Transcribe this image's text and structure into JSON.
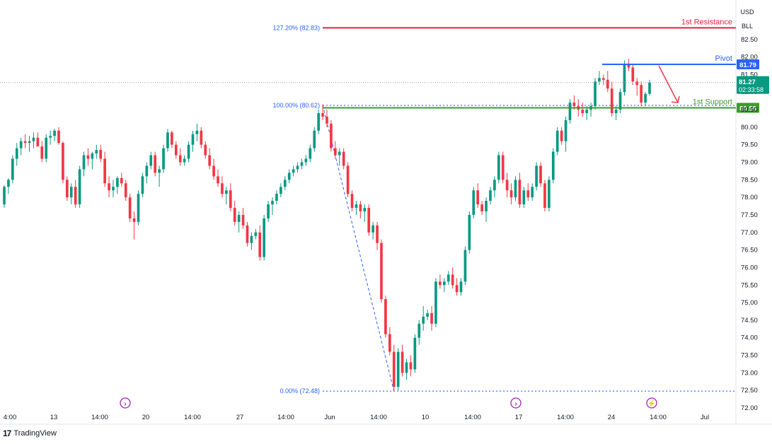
{
  "chart_data": {
    "type": "candlestick",
    "currency": "USD",
    "unit": "BLL",
    "ylim": [
      72.0,
      83.2
    ],
    "y_ticks": [
      "72.00",
      "72.50",
      "73.00",
      "73.50",
      "74.00",
      "74.50",
      "75.00",
      "75.50",
      "76.00",
      "76.50",
      "77.00",
      "77.50",
      "78.00",
      "78.50",
      "79.00",
      "79.50",
      "80.00",
      "80.50",
      "81.00",
      "81.50",
      "82.00",
      "82.50"
    ],
    "x_ticks": [
      "4:00",
      "13",
      "14:00",
      "20",
      "14:00",
      "27",
      "14:00",
      "Jun",
      "14:00",
      "10",
      "14:00",
      "17",
      "14:00",
      "24",
      "14:00",
      "Jul"
    ],
    "price_level": {
      "value": 81.27,
      "label": "81.27",
      "countdown": "02:33:58",
      "color": "#089981"
    },
    "levels": [
      {
        "name": "1st Resistance",
        "value": 82.83,
        "color": "#e91e45"
      },
      {
        "name": "Pivot",
        "value": 81.79,
        "label": "81.79",
        "color": "#2962ff"
      },
      {
        "name": "1st Support",
        "value": 80.55,
        "label": "80.55",
        "color": "#3d9a2b"
      }
    ],
    "fib_levels": [
      {
        "label": "127.20% (82.83)",
        "value": 82.83
      },
      {
        "label": "100.00% (80.62)",
        "value": 80.62
      },
      {
        "label": "0.00% (72.48)",
        "value": 72.48
      }
    ],
    "fib_swing": {
      "from_value": 80.62,
      "to_value": 72.48
    },
    "up_color": "#089981",
    "down_color": "#f23645",
    "candles": [
      [
        77.8,
        78.35,
        77.7,
        78.3
      ],
      [
        78.3,
        78.55,
        78.1,
        78.5
      ],
      [
        78.5,
        79.2,
        78.4,
        79.1
      ],
      [
        79.1,
        79.55,
        78.9,
        79.4
      ],
      [
        79.4,
        79.7,
        79.2,
        79.6
      ],
      [
        79.6,
        79.8,
        79.4,
        79.55
      ],
      [
        79.55,
        79.75,
        79.3,
        79.6
      ],
      [
        79.6,
        79.85,
        79.4,
        79.7
      ],
      [
        79.7,
        79.85,
        79.5,
        79.45
      ],
      [
        79.45,
        79.6,
        79.0,
        79.1
      ],
      [
        79.1,
        79.8,
        79.0,
        79.7
      ],
      [
        79.7,
        79.9,
        79.5,
        79.75
      ],
      [
        79.75,
        79.95,
        79.6,
        79.9
      ],
      [
        79.9,
        80.0,
        79.5,
        79.55
      ],
      [
        79.55,
        79.6,
        78.4,
        78.5
      ],
      [
        78.5,
        78.6,
        77.9,
        78.0
      ],
      [
        78.0,
        78.4,
        77.8,
        78.3
      ],
      [
        78.3,
        78.5,
        77.7,
        77.8
      ],
      [
        77.8,
        78.9,
        77.7,
        78.8
      ],
      [
        78.8,
        79.3,
        78.6,
        79.2
      ],
      [
        79.2,
        79.4,
        78.9,
        79.1
      ],
      [
        79.1,
        79.3,
        78.8,
        79.25
      ],
      [
        79.25,
        79.5,
        79.1,
        79.35
      ],
      [
        79.35,
        79.5,
        79.0,
        79.1
      ],
      [
        79.1,
        79.3,
        78.3,
        78.4
      ],
      [
        78.4,
        78.6,
        78.0,
        78.2
      ],
      [
        78.2,
        78.5,
        78.0,
        78.3
      ],
      [
        78.3,
        78.6,
        78.1,
        78.55
      ],
      [
        78.55,
        78.7,
        78.3,
        78.4
      ],
      [
        78.4,
        78.5,
        77.9,
        78.0
      ],
      [
        78.0,
        78.1,
        77.3,
        77.4
      ],
      [
        77.4,
        77.6,
        76.8,
        77.3
      ],
      [
        77.3,
        78.2,
        77.2,
        78.1
      ],
      [
        78.1,
        78.7,
        78.0,
        78.6
      ],
      [
        78.6,
        79.0,
        78.4,
        78.9
      ],
      [
        78.9,
        79.3,
        78.8,
        79.2
      ],
      [
        79.2,
        79.3,
        78.6,
        78.7
      ],
      [
        78.7,
        78.9,
        78.3,
        78.8
      ],
      [
        78.8,
        79.5,
        78.7,
        79.4
      ],
      [
        79.4,
        79.95,
        79.3,
        79.85
      ],
      [
        79.85,
        79.9,
        79.4,
        79.5
      ],
      [
        79.5,
        79.6,
        79.1,
        79.2
      ],
      [
        79.2,
        79.4,
        78.9,
        79.0
      ],
      [
        79.0,
        79.2,
        78.9,
        79.1
      ],
      [
        79.1,
        79.6,
        79.0,
        79.5
      ],
      [
        79.5,
        79.9,
        79.3,
        79.8
      ],
      [
        79.8,
        80.1,
        79.6,
        79.9
      ],
      [
        79.9,
        80.0,
        79.4,
        79.5
      ],
      [
        79.5,
        79.6,
        79.1,
        79.2
      ],
      [
        79.2,
        79.4,
        78.8,
        78.9
      ],
      [
        78.9,
        79.1,
        78.5,
        78.6
      ],
      [
        78.6,
        78.8,
        78.3,
        78.4
      ],
      [
        78.4,
        78.6,
        78.0,
        78.1
      ],
      [
        78.1,
        78.3,
        77.8,
        78.2
      ],
      [
        78.2,
        78.4,
        77.6,
        77.7
      ],
      [
        77.7,
        77.9,
        77.2,
        77.3
      ],
      [
        77.3,
        77.6,
        77.0,
        77.5
      ],
      [
        77.5,
        77.7,
        77.1,
        77.2
      ],
      [
        77.2,
        77.3,
        76.6,
        76.7
      ],
      [
        76.7,
        77.0,
        76.5,
        76.9
      ],
      [
        76.9,
        77.1,
        76.8,
        77.0
      ],
      [
        77.0,
        77.2,
        76.2,
        76.3
      ],
      [
        76.3,
        77.5,
        76.2,
        77.4
      ],
      [
        77.4,
        77.9,
        77.3,
        77.8
      ],
      [
        77.8,
        78.0,
        77.5,
        77.9
      ],
      [
        77.9,
        78.2,
        77.8,
        78.1
      ],
      [
        78.1,
        78.4,
        78.0,
        78.3
      ],
      [
        78.3,
        78.6,
        78.2,
        78.5
      ],
      [
        78.5,
        78.8,
        78.4,
        78.7
      ],
      [
        78.7,
        78.9,
        78.6,
        78.8
      ],
      [
        78.8,
        79.0,
        78.7,
        78.9
      ],
      [
        78.9,
        79.1,
        78.8,
        79.0
      ],
      [
        79.0,
        79.2,
        78.9,
        79.1
      ],
      [
        79.1,
        79.5,
        79.0,
        79.4
      ],
      [
        79.4,
        80.0,
        79.3,
        79.9
      ],
      [
        79.9,
        80.5,
        79.8,
        80.4
      ],
      [
        80.4,
        80.65,
        80.2,
        80.3
      ],
      [
        80.3,
        80.5,
        80.0,
        80.1
      ],
      [
        80.1,
        80.2,
        79.3,
        79.4
      ],
      [
        79.4,
        79.6,
        79.1,
        79.2
      ],
      [
        79.2,
        79.4,
        78.9,
        79.3
      ],
      [
        79.3,
        79.4,
        78.8,
        78.9
      ],
      [
        78.9,
        79.0,
        78.0,
        78.1
      ],
      [
        78.1,
        78.2,
        77.6,
        77.7
      ],
      [
        77.7,
        77.9,
        77.5,
        77.8
      ],
      [
        77.8,
        77.9,
        77.4,
        77.6
      ],
      [
        77.6,
        77.8,
        77.3,
        77.7
      ],
      [
        77.7,
        77.8,
        76.9,
        77.0
      ],
      [
        77.0,
        77.3,
        76.8,
        77.2
      ],
      [
        77.2,
        77.3,
        76.5,
        76.7
      ],
      [
        76.7,
        76.8,
        75.0,
        75.1
      ],
      [
        75.1,
        75.2,
        74.0,
        74.1
      ],
      [
        74.1,
        74.3,
        73.5,
        73.6
      ],
      [
        73.6,
        73.8,
        72.48,
        72.6
      ],
      [
        72.6,
        73.7,
        72.5,
        73.6
      ],
      [
        73.6,
        73.8,
        72.9,
        73.0
      ],
      [
        73.0,
        73.4,
        72.8,
        73.3
      ],
      [
        73.3,
        73.5,
        72.9,
        73.1
      ],
      [
        73.1,
        74.1,
        73.0,
        74.0
      ],
      [
        74.0,
        74.5,
        73.8,
        74.4
      ],
      [
        74.4,
        74.9,
        74.2,
        74.6
      ],
      [
        74.6,
        74.8,
        74.5,
        74.7
      ],
      [
        74.7,
        74.9,
        74.2,
        74.4
      ],
      [
        74.4,
        75.7,
        74.3,
        75.6
      ],
      [
        75.6,
        75.8,
        75.4,
        75.5
      ],
      [
        75.5,
        75.7,
        75.3,
        75.6
      ],
      [
        75.6,
        75.9,
        75.5,
        75.8
      ],
      [
        75.8,
        76.0,
        75.4,
        75.5
      ],
      [
        75.5,
        75.7,
        75.2,
        75.3
      ],
      [
        75.3,
        75.7,
        75.2,
        75.6
      ],
      [
        75.6,
        76.6,
        75.5,
        76.5
      ],
      [
        76.5,
        77.6,
        76.4,
        77.5
      ],
      [
        77.5,
        78.3,
        77.4,
        78.2
      ],
      [
        78.2,
        78.4,
        77.7,
        77.8
      ],
      [
        77.8,
        77.9,
        77.5,
        77.6
      ],
      [
        77.6,
        78.0,
        77.3,
        77.9
      ],
      [
        77.9,
        78.3,
        77.8,
        78.2
      ],
      [
        78.2,
        78.6,
        78.0,
        78.5
      ],
      [
        78.5,
        79.3,
        78.4,
        79.2
      ],
      [
        79.2,
        79.3,
        78.4,
        78.5
      ],
      [
        78.5,
        78.7,
        78.0,
        78.2
      ],
      [
        78.2,
        78.4,
        77.8,
        78.0
      ],
      [
        78.0,
        78.6,
        77.9,
        78.5
      ],
      [
        78.5,
        78.7,
        77.7,
        77.8
      ],
      [
        77.8,
        78.3,
        77.7,
        78.2
      ],
      [
        78.2,
        78.4,
        77.9,
        78.0
      ],
      [
        78.0,
        78.4,
        77.9,
        78.3
      ],
      [
        78.3,
        79.0,
        78.2,
        78.9
      ],
      [
        78.9,
        79.0,
        78.3,
        78.4
      ],
      [
        78.4,
        78.5,
        77.6,
        77.7
      ],
      [
        77.7,
        78.6,
        77.6,
        78.5
      ],
      [
        78.5,
        79.4,
        78.4,
        79.3
      ],
      [
        79.3,
        80.0,
        79.2,
        79.9
      ],
      [
        79.9,
        80.0,
        79.5,
        79.6
      ],
      [
        79.6,
        80.3,
        79.3,
        80.2
      ],
      [
        80.2,
        80.8,
        80.1,
        80.7
      ],
      [
        80.7,
        80.9,
        80.5,
        80.6
      ],
      [
        80.6,
        80.8,
        80.3,
        80.5
      ],
      [
        80.5,
        80.7,
        80.3,
        80.4
      ],
      [
        80.4,
        80.6,
        80.2,
        80.5
      ],
      [
        80.5,
        80.7,
        80.3,
        80.6
      ],
      [
        80.6,
        81.4,
        80.5,
        81.3
      ],
      [
        81.3,
        81.6,
        81.2,
        81.4
      ],
      [
        81.4,
        81.5,
        81.2,
        81.35
      ],
      [
        81.35,
        81.6,
        81.0,
        81.1
      ],
      [
        81.1,
        81.3,
        80.3,
        80.4
      ],
      [
        80.4,
        80.6,
        80.2,
        80.5
      ],
      [
        80.5,
        81.1,
        80.4,
        81.0
      ],
      [
        81.0,
        81.9,
        80.9,
        81.8
      ],
      [
        81.8,
        81.95,
        81.6,
        81.7
      ],
      [
        81.7,
        81.8,
        81.2,
        81.3
      ],
      [
        81.3,
        81.4,
        80.9,
        81.2
      ],
      [
        81.2,
        81.3,
        80.6,
        80.7
      ],
      [
        80.7,
        81.0,
        80.6,
        80.95
      ],
      [
        80.95,
        81.35,
        80.9,
        81.27
      ]
    ]
  },
  "toolbar": {
    "icon1": "forward-circle-icon",
    "icon2": "forward-circle-icon",
    "icon3": "lightning-circle-icon"
  },
  "branding": {
    "name": "TradingView"
  }
}
